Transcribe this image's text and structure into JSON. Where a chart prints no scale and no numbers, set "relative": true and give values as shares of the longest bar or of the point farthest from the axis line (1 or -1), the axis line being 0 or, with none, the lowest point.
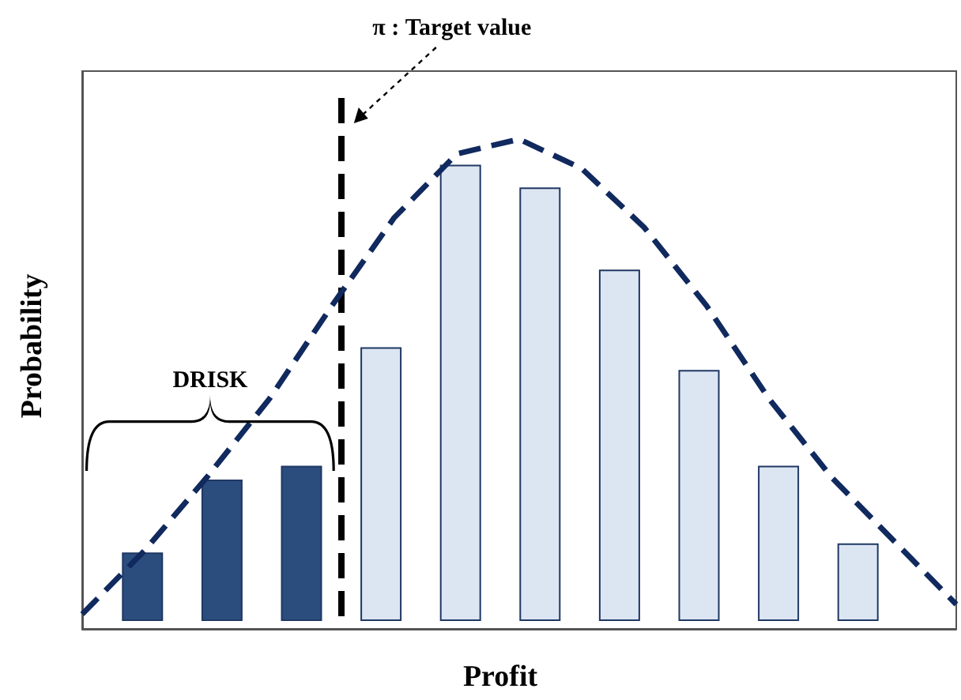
{
  "chart_data": [
    {
      "type": "bar",
      "relative": true,
      "xlabel": "Profit",
      "ylabel": "Probability",
      "categories": [
        null,
        null,
        null,
        null,
        null,
        null,
        null,
        null,
        null,
        null
      ],
      "values": [
        0.15,
        0.31,
        0.34,
        0.6,
        1,
        0.95,
        0.77,
        0.55,
        0.34,
        0.17
      ],
      "colors": [
        "#2b4d7e",
        "#2b4d7e",
        "#2b4d7e",
        "#dce6f2",
        "#dce6f2",
        "#dce6f2",
        "#dce6f2",
        "#dce6f2",
        "#dce6f2",
        "#dce6f2"
      ],
      "annotations": [
        "π : Target value",
        "DRISK"
      ]
    },
    {
      "type": "line",
      "relative": true,
      "categories": [
        null,
        null,
        null,
        null,
        null,
        null,
        null,
        null,
        null,
        null,
        null,
        null,
        null,
        null,
        null
      ],
      "values": [
        0.03,
        0.16,
        0.31,
        0.47,
        0.66,
        0.84,
        0.97,
        1,
        0.94,
        0.82,
        0.66,
        0.47,
        0.31,
        0.18,
        0.05
      ],
      "color": "#10295e",
      "line_style": "dashed",
      "marker": "none"
    }
  ]
}
